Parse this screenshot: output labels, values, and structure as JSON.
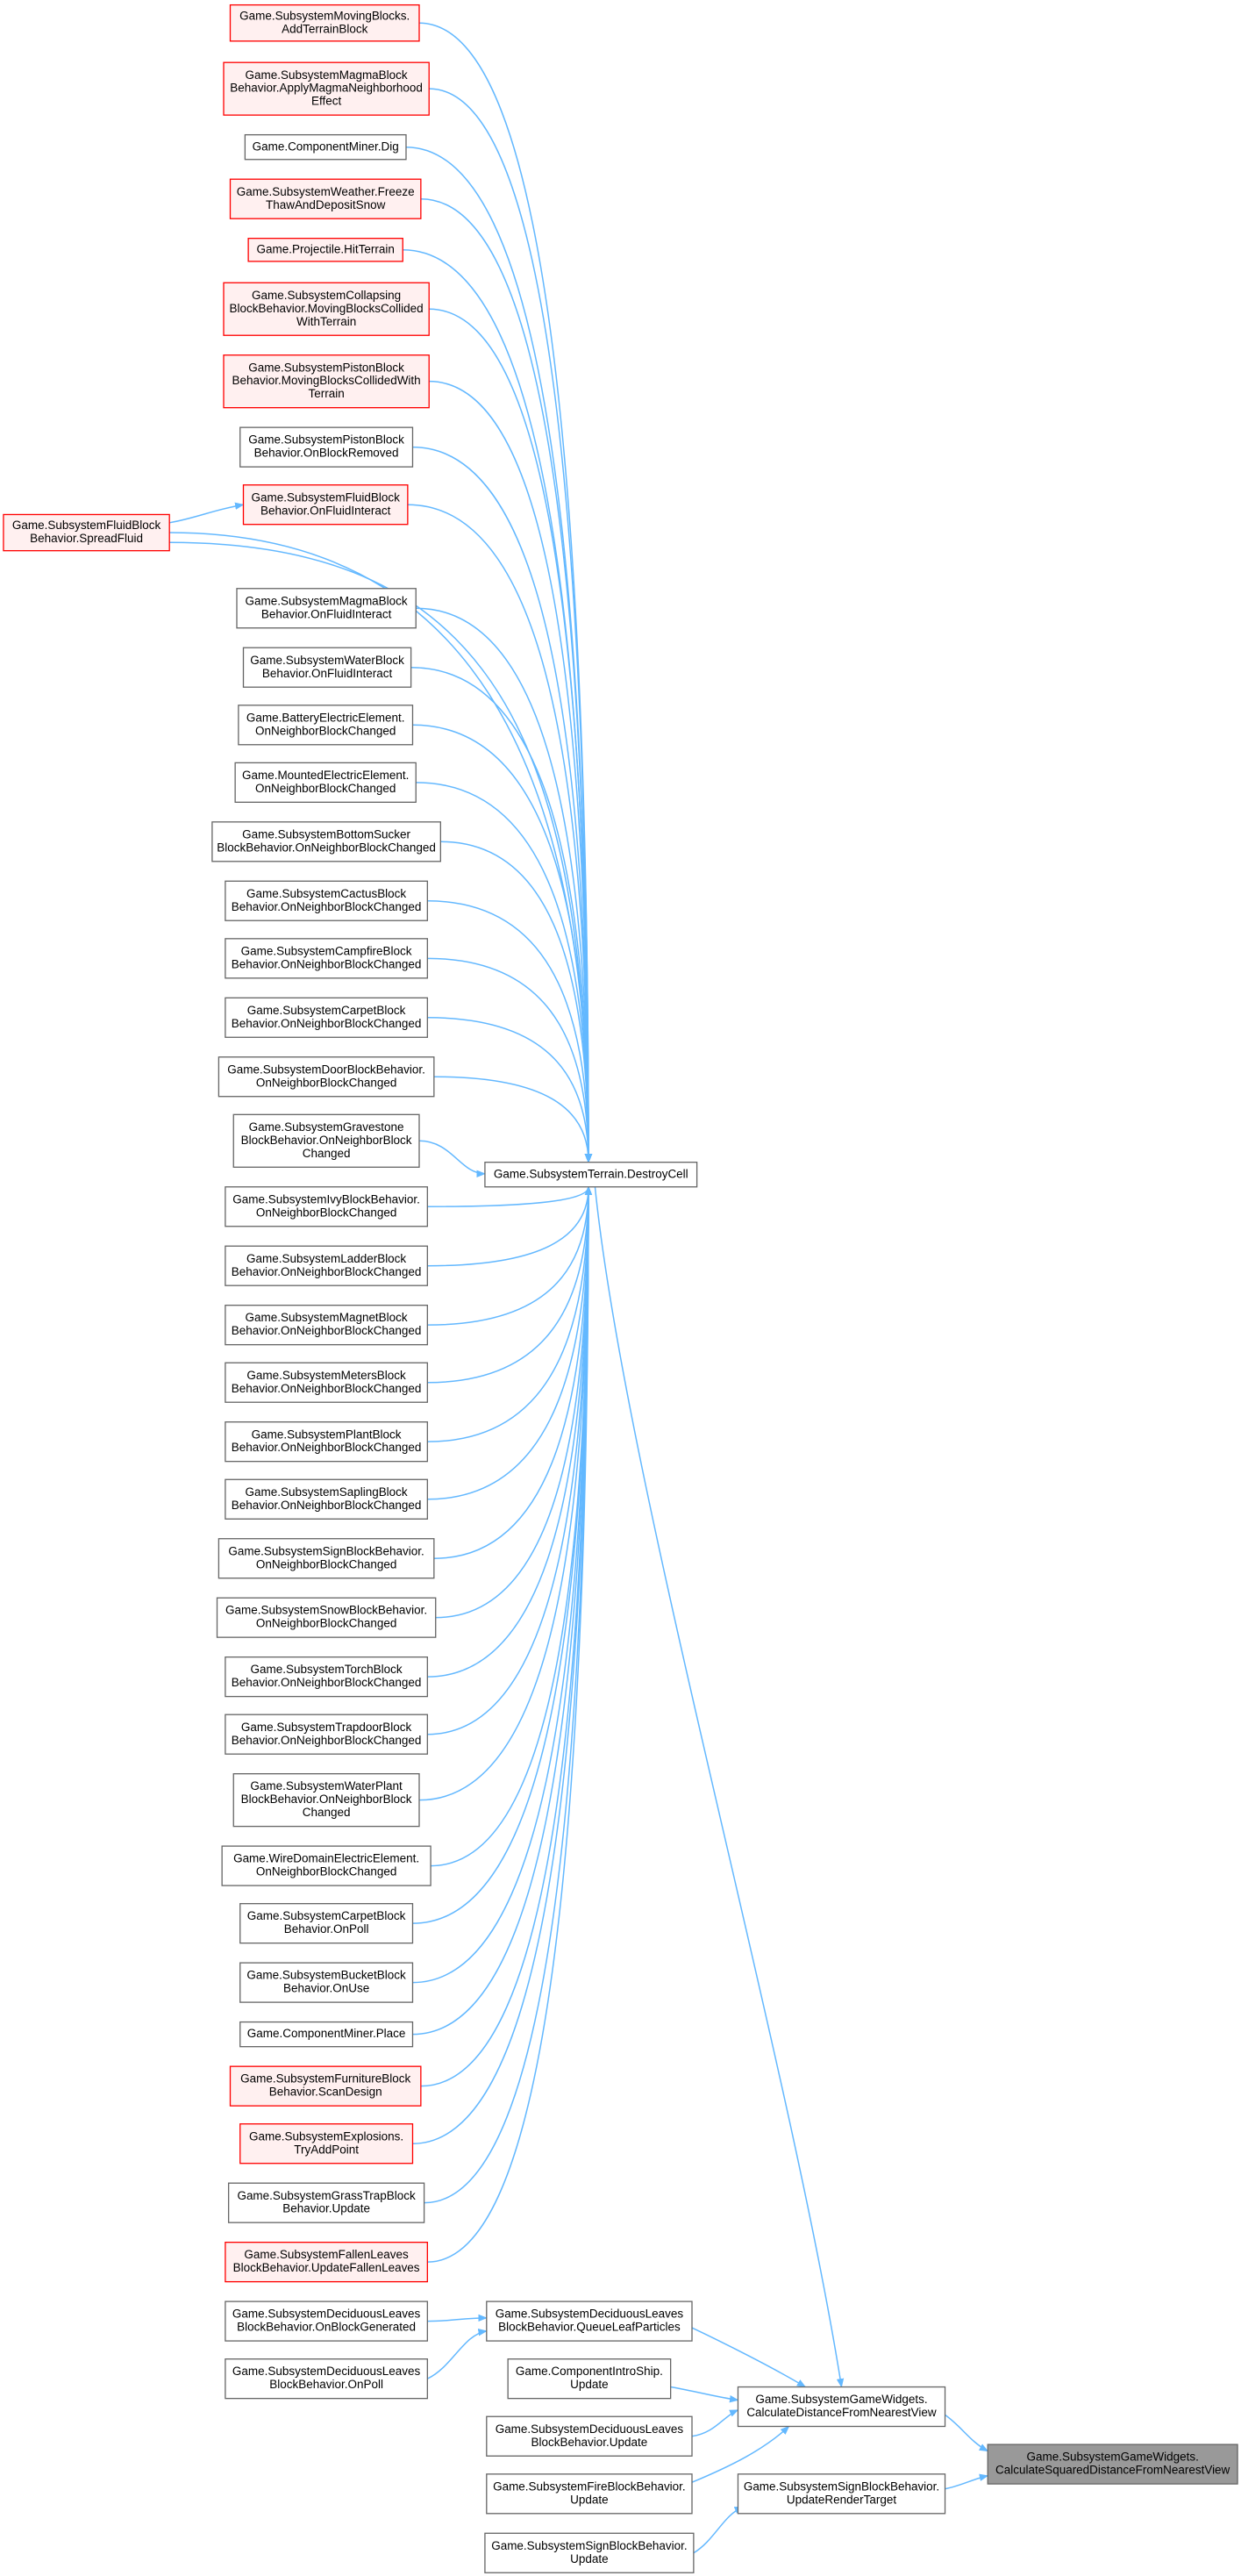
{
  "nodes": [
    {
      "lines": [
        "Game.SubsystemMovingBlocks.",
        "AddTerrainBlock"
      ]
    },
    {
      "lines": [
        "Game.SubsystemMagmaBlock",
        "Behavior.ApplyMagmaNeighborhood",
        "Effect"
      ]
    },
    {
      "lines": [
        "Game.ComponentMiner.Dig"
      ]
    },
    {
      "lines": [
        "Game.SubsystemWeather.Freeze",
        "ThawAndDepositSnow"
      ]
    },
    {
      "lines": [
        "Game.Projectile.HitTerrain"
      ]
    },
    {
      "lines": [
        "Game.SubsystemCollapsing",
        "BlockBehavior.MovingBlocksCollided",
        "WithTerrain"
      ]
    },
    {
      "lines": [
        "Game.SubsystemPistonBlock",
        "Behavior.MovingBlocksCollidedWith",
        "Terrain"
      ]
    },
    {
      "lines": [
        "Game.SubsystemPistonBlock",
        "Behavior.OnBlockRemoved"
      ]
    },
    {
      "lines": [
        "Game.SubsystemFluidBlock",
        "Behavior.OnFluidInteract"
      ]
    },
    {
      "lines": [
        "Game.SubsystemFluidBlock",
        "Behavior.SpreadFluid"
      ]
    },
    {
      "lines": [
        "Game.SubsystemMagmaBlock",
        "Behavior.OnFluidInteract"
      ]
    },
    {
      "lines": [
        "Game.SubsystemWaterBlock",
        "Behavior.OnFluidInteract"
      ]
    },
    {
      "lines": [
        "Game.BatteryElectricElement.",
        "OnNeighborBlockChanged"
      ]
    },
    {
      "lines": [
        "Game.MountedElectricElement.",
        "OnNeighborBlockChanged"
      ]
    },
    {
      "lines": [
        "Game.SubsystemBottomSucker",
        "BlockBehavior.OnNeighborBlockChanged"
      ]
    },
    {
      "lines": [
        "Game.SubsystemCactusBlock",
        "Behavior.OnNeighborBlockChanged"
      ]
    },
    {
      "lines": [
        "Game.SubsystemCampfireBlock",
        "Behavior.OnNeighborBlockChanged"
      ]
    },
    {
      "lines": [
        "Game.SubsystemCarpetBlock",
        "Behavior.OnNeighborBlockChanged"
      ]
    },
    {
      "lines": [
        "Game.SubsystemDoorBlockBehavior.",
        "OnNeighborBlockChanged"
      ]
    },
    {
      "lines": [
        "Game.SubsystemGravestone",
        "BlockBehavior.OnNeighborBlock",
        "Changed"
      ]
    },
    {
      "lines": [
        "Game.SubsystemIvyBlockBehavior.",
        "OnNeighborBlockChanged"
      ]
    },
    {
      "lines": [
        "Game.SubsystemLadderBlock",
        "Behavior.OnNeighborBlockChanged"
      ]
    },
    {
      "lines": [
        "Game.SubsystemMagnetBlock",
        "Behavior.OnNeighborBlockChanged"
      ]
    },
    {
      "lines": [
        "Game.SubsystemMetersBlock",
        "Behavior.OnNeighborBlockChanged"
      ]
    },
    {
      "lines": [
        "Game.SubsystemPlantBlock",
        "Behavior.OnNeighborBlockChanged"
      ]
    },
    {
      "lines": [
        "Game.SubsystemSaplingBlock",
        "Behavior.OnNeighborBlockChanged"
      ]
    },
    {
      "lines": [
        "Game.SubsystemSignBlockBehavior.",
        "OnNeighborBlockChanged"
      ]
    },
    {
      "lines": [
        "Game.SubsystemSnowBlockBehavior.",
        "OnNeighborBlockChanged"
      ]
    },
    {
      "lines": [
        "Game.SubsystemTorchBlock",
        "Behavior.OnNeighborBlockChanged"
      ]
    },
    {
      "lines": [
        "Game.SubsystemTrapdoorBlock",
        "Behavior.OnNeighborBlockChanged"
      ]
    },
    {
      "lines": [
        "Game.SubsystemWaterPlant",
        "BlockBehavior.OnNeighborBlock",
        "Changed"
      ]
    },
    {
      "lines": [
        "Game.WireDomainElectricElement.",
        "OnNeighborBlockChanged"
      ]
    },
    {
      "lines": [
        "Game.SubsystemCarpetBlock",
        "Behavior.OnPoll"
      ]
    },
    {
      "lines": [
        "Game.SubsystemBucketBlock",
        "Behavior.OnUse"
      ]
    },
    {
      "lines": [
        "Game.ComponentMiner.Place"
      ]
    },
    {
      "lines": [
        "Game.SubsystemFurnitureBlock",
        "Behavior.ScanDesign"
      ]
    },
    {
      "lines": [
        "Game.SubsystemExplosions.",
        "TryAddPoint"
      ]
    },
    {
      "lines": [
        "Game.SubsystemGrassTrapBlock",
        "Behavior.Update"
      ]
    },
    {
      "lines": [
        "Game.SubsystemFallenLeaves",
        "BlockBehavior.UpdateFallenLeaves"
      ]
    },
    {
      "lines": [
        "Game.SubsystemTerrain.DestroyCell"
      ]
    },
    {
      "lines": [
        "Game.SubsystemDeciduousLeaves",
        "BlockBehavior.OnBlockGenerated"
      ]
    },
    {
      "lines": [
        "Game.SubsystemDeciduousLeaves",
        "BlockBehavior.OnPoll"
      ]
    },
    {
      "lines": [
        "Game.SubsystemDeciduousLeaves",
        "BlockBehavior.QueueLeafParticles"
      ]
    },
    {
      "lines": [
        "Game.ComponentIntroShip.",
        "Update"
      ]
    },
    {
      "lines": [
        "Game.SubsystemDeciduousLeaves",
        "BlockBehavior.Update"
      ]
    },
    {
      "lines": [
        "Game.SubsystemFireBlockBehavior.",
        "Update"
      ]
    },
    {
      "lines": [
        "Game.SubsystemSignBlockBehavior.",
        "Update"
      ]
    },
    {
      "lines": [
        "Game.SubsystemGameWidgets.",
        "CalculateDistanceFromNearestView"
      ]
    },
    {
      "lines": [
        "Game.SubsystemSignBlockBehavior.",
        "UpdateRenderTarget"
      ]
    },
    {
      "lines": [
        "Game.SubsystemGameWidgets.",
        "CalculateSquaredDistanceFromNearestView"
      ]
    }
  ]
}
